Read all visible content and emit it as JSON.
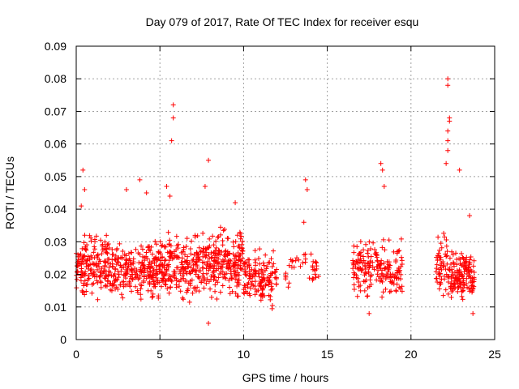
{
  "chart_data": {
    "type": "scatter",
    "title": "Day 079 of 2017, Rate Of TEC Index for receiver esqu",
    "xlabel": "GPS time / hours",
    "ylabel": "ROTI / TECUs",
    "xlim": [
      0,
      25
    ],
    "ylim": [
      0,
      0.09
    ],
    "grid": true,
    "marker": "+",
    "color": "#ff0000",
    "xticks": [
      "0",
      "5",
      "10",
      "15",
      "20",
      "25"
    ],
    "yticks": [
      "0",
      "0.01",
      "0.02",
      "0.03",
      "0.04",
      "0.05",
      "0.06",
      "0.07",
      "0.08",
      "0.09"
    ],
    "series": [
      {
        "name": "ROTI",
        "density_segments": [
          {
            "x_range": [
              0.0,
              2.0
            ],
            "y_range": [
              0.01,
              0.035
            ],
            "count": 170
          },
          {
            "x_range": [
              2.0,
              4.5
            ],
            "y_range": [
              0.01,
              0.032
            ],
            "count": 190
          },
          {
            "x_range": [
              4.5,
              7.5
            ],
            "y_range": [
              0.008,
              0.036
            ],
            "count": 260
          },
          {
            "x_range": [
              7.5,
              10.0
            ],
            "y_range": [
              0.01,
              0.037
            ],
            "count": 220
          },
          {
            "x_range": [
              10.0,
              12.0
            ],
            "y_range": [
              0.008,
              0.03
            ],
            "count": 140
          },
          {
            "x_range": [
              12.5,
              14.5
            ],
            "y_range": [
              0.014,
              0.03
            ],
            "count": 40
          },
          {
            "x_range": [
              16.5,
              19.5
            ],
            "y_range": [
              0.01,
              0.033
            ],
            "count": 190
          },
          {
            "x_range": [
              21.5,
              22.2
            ],
            "y_range": [
              0.012,
              0.036
            ],
            "count": 50
          },
          {
            "x_range": [
              22.2,
              23.8
            ],
            "y_range": [
              0.01,
              0.03
            ],
            "count": 150
          }
        ],
        "highlighted_points": [
          {
            "x": 0.3,
            "y": 0.041
          },
          {
            "x": 0.4,
            "y": 0.052
          },
          {
            "x": 0.5,
            "y": 0.046
          },
          {
            "x": 3.0,
            "y": 0.046
          },
          {
            "x": 3.8,
            "y": 0.049
          },
          {
            "x": 4.2,
            "y": 0.045
          },
          {
            "x": 5.4,
            "y": 0.047
          },
          {
            "x": 5.6,
            "y": 0.044
          },
          {
            "x": 5.7,
            "y": 0.061
          },
          {
            "x": 5.8,
            "y": 0.068
          },
          {
            "x": 5.8,
            "y": 0.072
          },
          {
            "x": 7.7,
            "y": 0.047
          },
          {
            "x": 7.9,
            "y": 0.055
          },
          {
            "x": 9.5,
            "y": 0.042
          },
          {
            "x": 7.9,
            "y": 0.005
          },
          {
            "x": 13.7,
            "y": 0.049
          },
          {
            "x": 13.8,
            "y": 0.046
          },
          {
            "x": 13.6,
            "y": 0.036
          },
          {
            "x": 18.2,
            "y": 0.054
          },
          {
            "x": 18.3,
            "y": 0.052
          },
          {
            "x": 18.4,
            "y": 0.047
          },
          {
            "x": 17.5,
            "y": 0.008
          },
          {
            "x": 22.1,
            "y": 0.054
          },
          {
            "x": 22.2,
            "y": 0.058
          },
          {
            "x": 22.2,
            "y": 0.061
          },
          {
            "x": 22.2,
            "y": 0.064
          },
          {
            "x": 22.3,
            "y": 0.067
          },
          {
            "x": 22.3,
            "y": 0.068
          },
          {
            "x": 22.2,
            "y": 0.078
          },
          {
            "x": 22.2,
            "y": 0.08
          },
          {
            "x": 22.9,
            "y": 0.052
          },
          {
            "x": 23.5,
            "y": 0.038
          },
          {
            "x": 23.7,
            "y": 0.008
          }
        ]
      }
    ]
  }
}
